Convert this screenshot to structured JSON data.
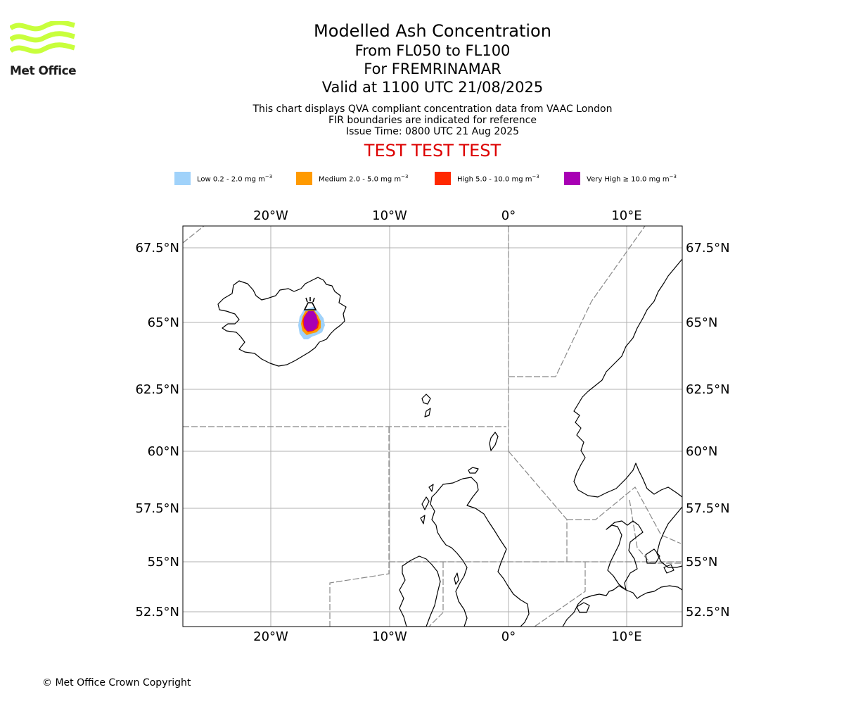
{
  "logo": {
    "text": "Met Office",
    "color": "#c8ff3c"
  },
  "header": {
    "title": "Modelled Ash Concentration",
    "flight_levels": "From FL050 to FL100",
    "volcano": "For FREMRINAMAR",
    "valid": "Valid at 1100 UTC 21/08/2025",
    "note1": "This chart displays QVA compliant concentration data from VAAC London",
    "note2": "FIR boundaries are indicated for reference",
    "issue_time": "Issue Time: 0800 UTC 21 Aug 2025",
    "test_banner": "TEST TEST TEST"
  },
  "legend": [
    {
      "label": "Low 0.2 - 2.0 mg m",
      "unit_exp": "−3",
      "color": "#a0d2fa"
    },
    {
      "label": "Medium 2.0 - 5.0 mg m",
      "unit_exp": "−3",
      "color": "#ff9a00"
    },
    {
      "label": "High 5.0 - 10.0 mg m",
      "unit_exp": "−3",
      "color": "#ff2800"
    },
    {
      "label": "Very High  ≥  10.0 mg m",
      "unit_exp": "−3",
      "color": "#a800b4"
    }
  ],
  "map": {
    "lon_ticks": [
      "20°W",
      "10°W",
      "0°",
      "10°E"
    ],
    "lat_ticks": [
      "67.5°N",
      "65°N",
      "62.5°N",
      "60°N",
      "57.5°N",
      "55°N",
      "52.5°N"
    ],
    "coastline_color": "#000000",
    "fir_color": "#888888",
    "grid_color": "#b0b0b0"
  },
  "footer": {
    "copyright": "© Met Office Crown Copyright"
  }
}
